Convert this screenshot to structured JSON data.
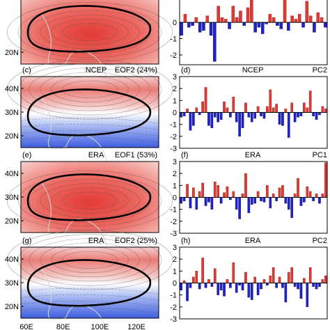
{
  "rows": [
    {
      "map": {
        "label": "",
        "dataset": "",
        "eof": "",
        "pattern": "eof1",
        "lat_labels": [
          "20N"
        ],
        "lat_values": [
          20
        ]
      },
      "pc": {
        "label": "",
        "dataset": "",
        "pc": "",
        "tick_labels": [
          "0",
          "-1",
          "-2"
        ]
      }
    },
    {
      "map": {
        "label": "(c)",
        "dataset": "NCEP",
        "eof": "EOF2 (24%)",
        "pattern": "eof2",
        "lat_labels": [
          "40N",
          "30N",
          "20N"
        ],
        "lat_values": [
          40,
          30,
          20
        ]
      },
      "pc": {
        "label": "(d)",
        "dataset": "NCEP",
        "pc": "PC2",
        "tick_labels": [
          "3",
          "2",
          "1",
          "0",
          "-1",
          "-2",
          "-3"
        ]
      }
    },
    {
      "map": {
        "label": "(e)",
        "dataset": "ERA",
        "eof": "EOF1 (53%)",
        "pattern": "eof1",
        "lat_labels": [
          "40N",
          "30N",
          "20N"
        ],
        "lat_values": [
          40,
          30,
          20
        ]
      },
      "pc": {
        "label": "(f)",
        "dataset": "ERA",
        "pc": "PC1",
        "tick_labels": [
          "3",
          "2",
          "1",
          "0",
          "-1",
          "-2",
          "-3"
        ]
      }
    },
    {
      "map": {
        "label": "(g)",
        "dataset": "ERA",
        "eof": "EOF2 (25%)",
        "pattern": "eof2",
        "lat_labels": [
          "40N",
          "30N",
          "20N"
        ],
        "lat_values": [
          40,
          30,
          20
        ]
      },
      "pc": {
        "label": "(h)",
        "dataset": "ERA",
        "pc": "PC2",
        "tick_labels": [
          "3",
          "2",
          "1",
          "0",
          "-1",
          "-2",
          "-3"
        ]
      }
    }
  ],
  "lon_labels": [
    "60E",
    "80E",
    "100E",
    "120E"
  ],
  "lon_values": [
    60,
    80,
    100,
    120
  ],
  "colors": {
    "positive": "#e03a33",
    "negative": "#1f22c9",
    "map_red": "#e8423c",
    "map_blue": "#3f5ee0",
    "coast": "#d8d8d8"
  },
  "chart_data": [
    {
      "type": "bar",
      "panel": "top-right (cropped)",
      "ylim": [
        -2.6,
        1.8
      ],
      "values": [
        -0.8,
        0.5,
        -0.3,
        -0.2,
        0.3,
        -0.6,
        -0.5,
        0.4,
        -0.8,
        -2.4,
        1.0,
        0.3,
        0.2,
        -0.4,
        1.0,
        0.3,
        0.7,
        -0.2,
        0.9,
        1.7,
        -0.6,
        -0.3,
        -0.7,
        -0.1,
        0.5,
        0.3,
        -0.2,
        -0.4,
        1.6,
        -0.5,
        0.4,
        0.2,
        0.5,
        -0.3,
        1.3,
        0.4,
        -0.6,
        0.6,
        0.3,
        -0.3
      ]
    },
    {
      "type": "bar",
      "panel": "(d) NCEP PC2",
      "ylim": [
        -3,
        3
      ],
      "values": [
        -0.4,
        -0.3,
        0.3,
        -1.5,
        -1.1,
        0.4,
        -0.2,
        0.9,
        2.1,
        -1.1,
        -1.3,
        -0.4,
        -0.8,
        -0.6,
        0.9,
        0.4,
        -0.4,
        1.3,
        -0.8,
        -2.0,
        -1.3,
        0.8,
        -0.4,
        -0.8,
        -0.5,
        0.5,
        -0.3,
        -0.5,
        0.5,
        1.9,
        0.4,
        0.7,
        -1.0,
        -1.1,
        0.3,
        -2.1,
        0.8,
        -0.8,
        -0.4,
        -0.3,
        0.8,
        0.4,
        1.8,
        -0.3,
        -0.6,
        -0.2,
        0.5,
        0.3
      ]
    },
    {
      "type": "bar",
      "panel": "(f) ERA PC1",
      "ylim": [
        -3,
        3
      ],
      "values": [
        -0.5,
        -0.3,
        1.1,
        -0.9,
        0.8,
        -1.0,
        0.5,
        1.2,
        -0.7,
        -0.4,
        -1.0,
        1.3,
        1.0,
        -0.5,
        0.4,
        0.9,
        -0.2,
        0.5,
        -1.0,
        -1.8,
        0.3,
        2.0,
        -1.3,
        -0.6,
        -0.5,
        0.5,
        -0.3,
        -0.4,
        1.0,
        -0.9,
        0.3,
        -0.3,
        0.8,
        1.0,
        -0.5,
        -1.0,
        -1.7,
        0.3,
        1.6,
        -0.7,
        -0.4,
        0.9,
        0.5,
        -0.3,
        0.3,
        -0.5,
        0.3,
        2.9
      ]
    },
    {
      "type": "bar",
      "panel": "(h) ERA PC2",
      "ylim": [
        -3,
        3
      ],
      "values": [
        -0.6,
        0.2,
        -1.5,
        -0.4,
        0.5,
        1.0,
        -0.5,
        2.1,
        -0.4,
        0.3,
        -0.3,
        1.2,
        -1.0,
        -0.6,
        -1.1,
        0.3,
        -0.4,
        1.7,
        -0.8,
        -0.2,
        -0.6,
        0.9,
        -1.2,
        -1.4,
        0.5,
        -1.0,
        -0.5,
        0.3,
        -0.2,
        0.6,
        1.3,
        -0.4,
        0.5,
        -0.4,
        -1.6,
        0.9,
        1.3,
        -0.3,
        -0.5,
        -1.3,
        0.4,
        -2.0,
        1.3,
        -0.3,
        -0.5,
        -0.3,
        0.3,
        0.6
      ]
    }
  ]
}
